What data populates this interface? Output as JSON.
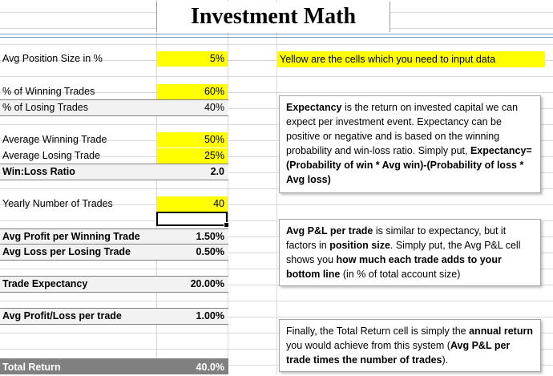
{
  "title": "Investment Math",
  "rows": {
    "position_size": {
      "label": "Avg Position Size in %",
      "value": "5%"
    },
    "winning_trades": {
      "label": "% of Winning Trades",
      "value": "60%"
    },
    "losing_trades": {
      "label": "% of Losing Trades",
      "value": "40%"
    },
    "avg_winning": {
      "label": "Average Winning Trade",
      "value": "50%"
    },
    "avg_losing": {
      "label": "Average Losing Trade",
      "value": "25%"
    },
    "win_loss_ratio": {
      "label": "Win:Loss Ratio",
      "value": "2.0"
    },
    "yearly_trades": {
      "label": "Yearly Number of Trades",
      "value": "40"
    },
    "avg_profit_win": {
      "label": "Avg Profit per Winning Trade",
      "value": "1.50%"
    },
    "avg_loss_lose": {
      "label": "Avg Loss per Losing Trade",
      "value": "0.50%"
    },
    "trade_expectancy": {
      "label": "Trade Expectancy",
      "value": "20.00%"
    },
    "avg_pl_trade": {
      "label": "Avg Profit/Loss per trade",
      "value": "1.00%"
    },
    "total_return": {
      "label": "Total Return",
      "value": "40.0%"
    }
  },
  "notes": {
    "yellow_note": "Yellow are the cells which you need to input data",
    "expectancy": {
      "term": "Expectancy",
      "text1": " is the return on invested capital we can expect per investment event. Expectancy can be positive or negative and is based on the winning probability and win-loss ratio. Simply put, ",
      "formula": "Expectancy=(Probability of win * Avg win)-(Probability of loss * Avg loss)"
    },
    "avg_pl": {
      "term": "Avg P&L per trade",
      "text1": " is similar to expectancy, but it factors in ",
      "term2": "position size",
      "text2": ". Simply put, the Avg P&L cell shows you ",
      "term3": "how much each trade adds to your bottom line",
      "text3": " (in % of total account size)"
    },
    "total": {
      "text1": "Finally, the Total Return cell is simply the ",
      "term": "annual return",
      "text2": " you would achieve from this system (",
      "term2": "Avg P&L per trade times the number of trades",
      "text3": ")."
    }
  },
  "colors": {
    "input": "#ffff00",
    "total_fill": "#808080",
    "calc_fill": "#f2f2f2"
  }
}
